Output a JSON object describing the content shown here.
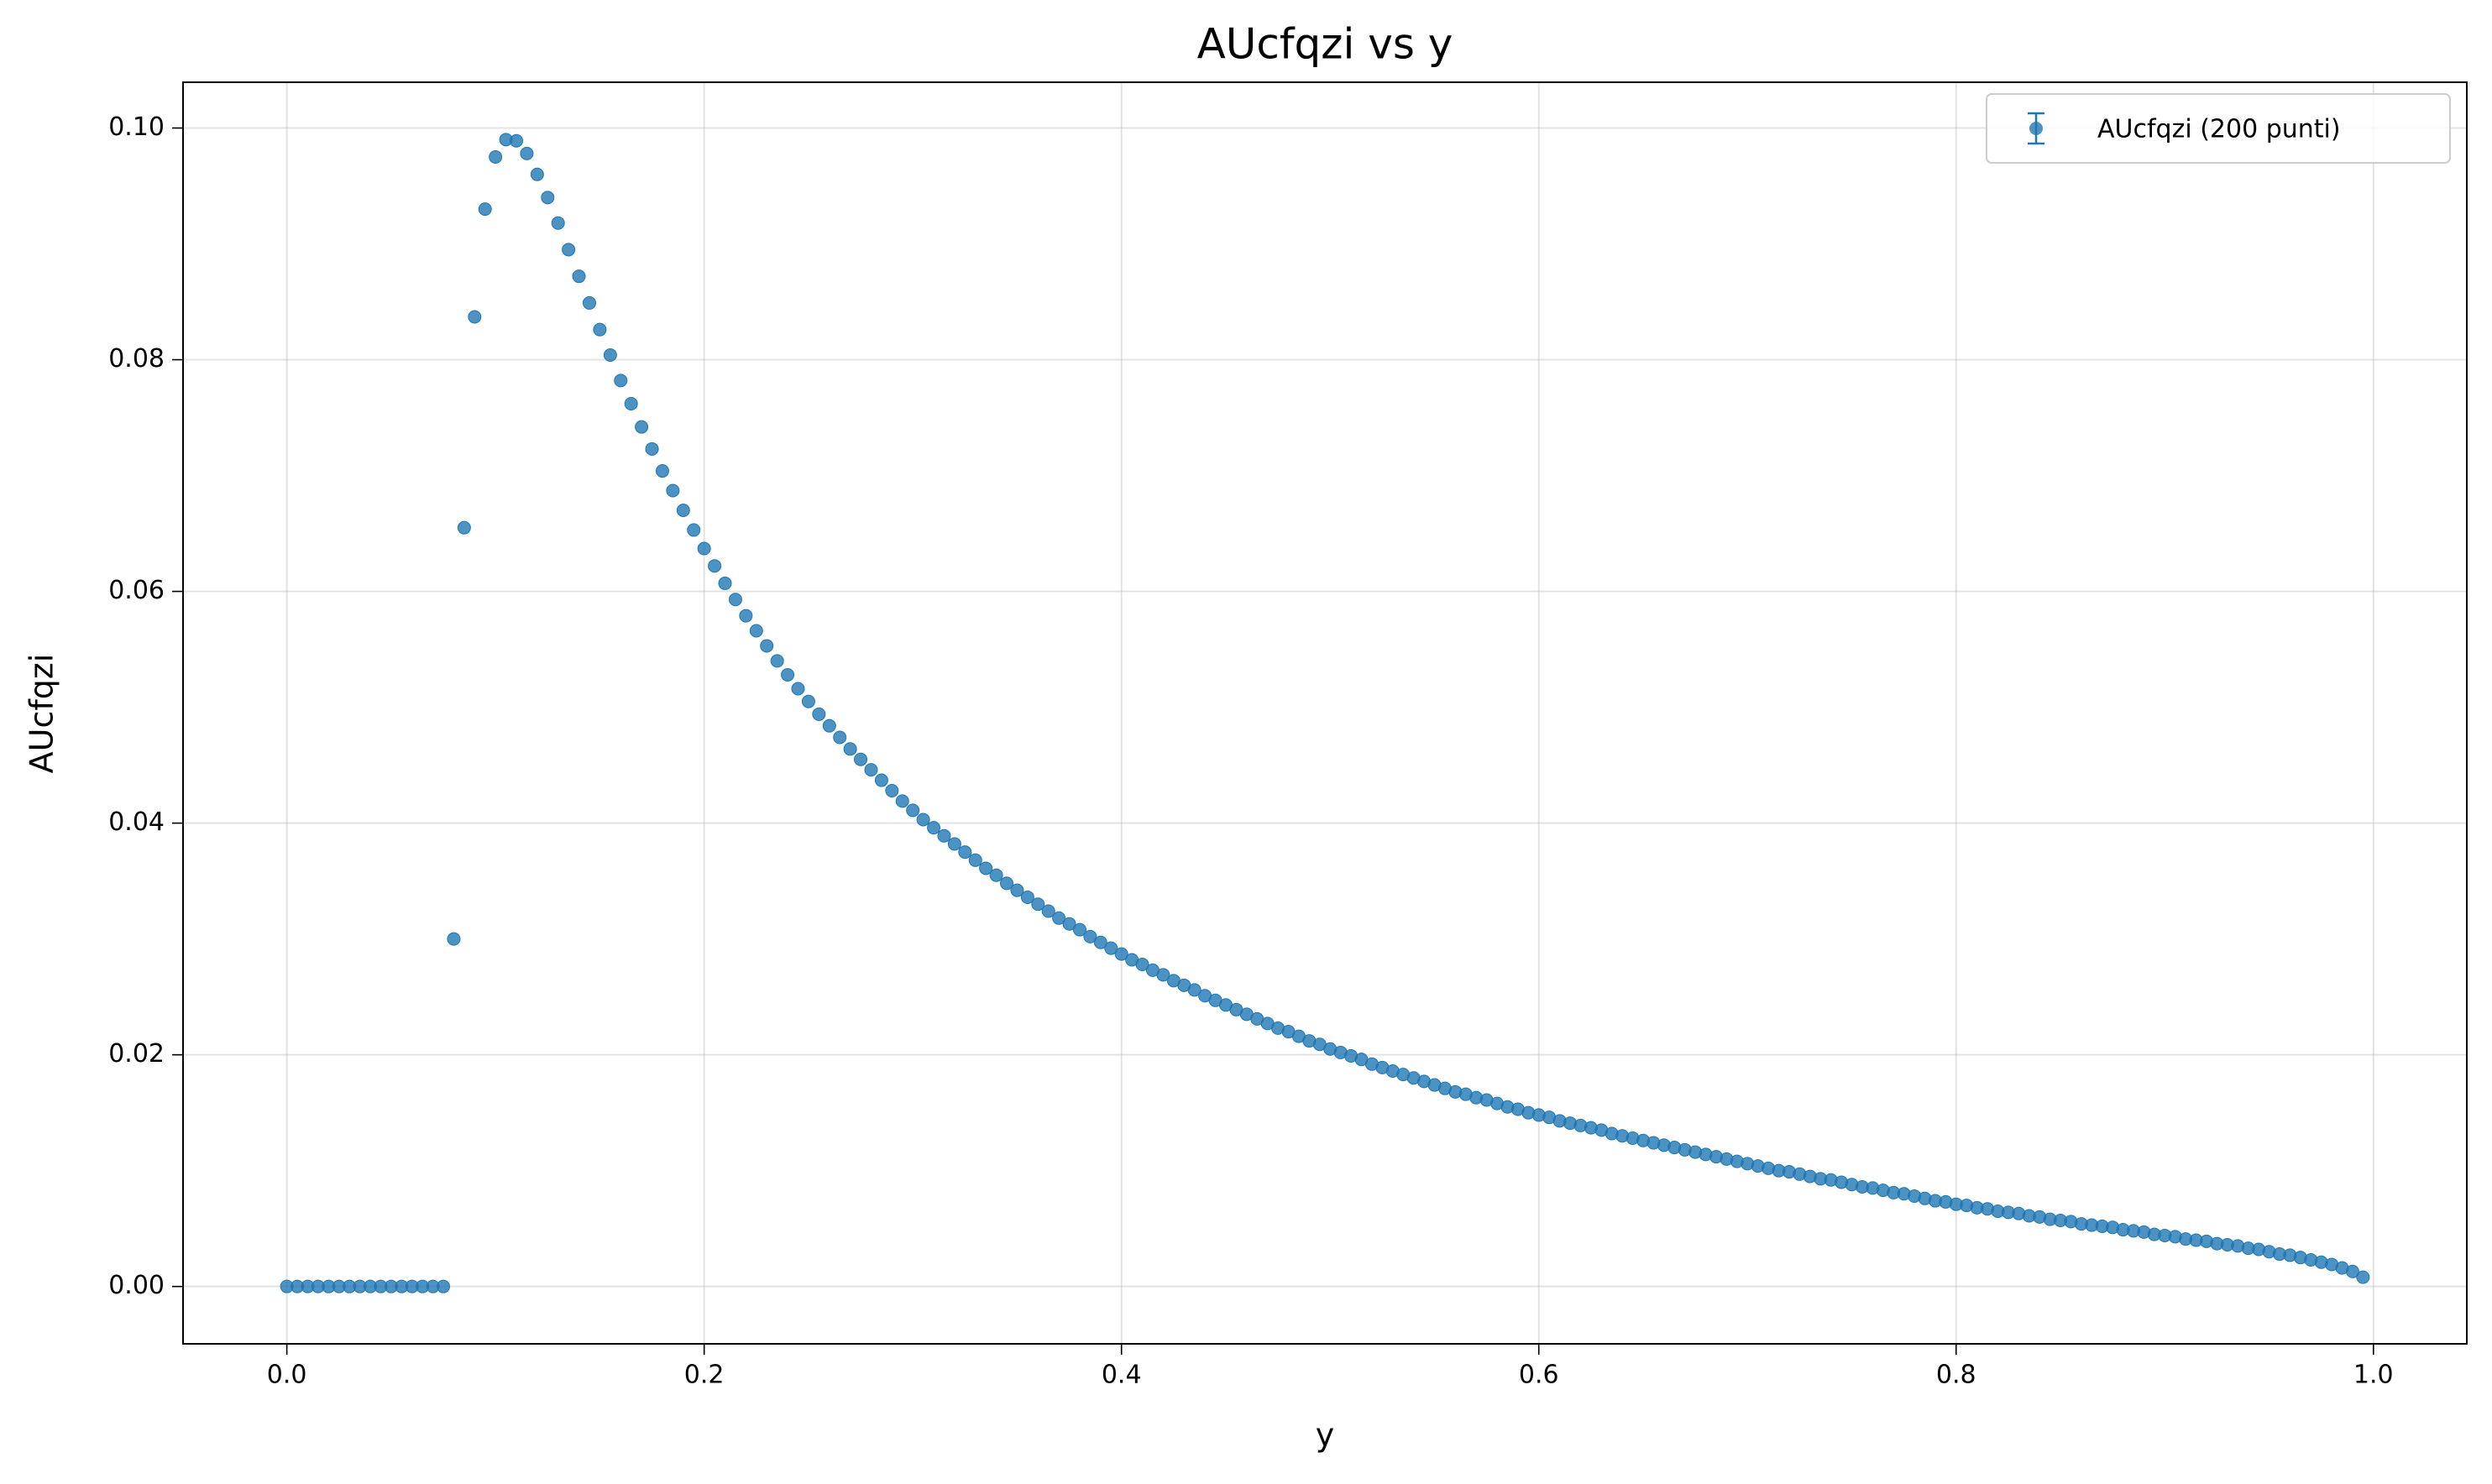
{
  "chart_data": {
    "type": "scatter",
    "title": "AUcfqzi vs y",
    "x_label": "y",
    "y_label": "AUcfqzi",
    "legend": "upper right",
    "grid": true,
    "xlim": [
      -0.04975,
      1.04475
    ],
    "ylim": [
      -0.00495,
      0.10395
    ],
    "xticks": [
      {
        "value": 0,
        "label": "0.0"
      },
      {
        "value": 0.2,
        "label": "0.2"
      },
      {
        "value": 0.4,
        "label": "0.4"
      },
      {
        "value": 0.6,
        "label": "0.6"
      },
      {
        "value": 0.8,
        "label": "0.8"
      },
      {
        "value": 1.0,
        "label": "1.0"
      }
    ],
    "yticks": [
      {
        "value": 0,
        "label": "0.00"
      },
      {
        "value": 0.02,
        "label": "0.02"
      },
      {
        "value": 0.04,
        "label": "0.04"
      },
      {
        "value": 0.06,
        "label": "0.06"
      },
      {
        "value": 0.08,
        "label": "0.08"
      },
      {
        "value": 0.1,
        "label": "0.10"
      }
    ],
    "series": [
      {
        "name": "AUcfqzi (200 punti)",
        "color": "#1f77b4",
        "x": [
          0,
          0.005,
          0.01,
          0.015,
          0.02,
          0.025,
          0.03,
          0.035,
          0.04,
          0.045,
          0.05,
          0.055,
          0.06,
          0.065,
          0.07,
          0.075,
          0.08,
          0.085,
          0.09,
          0.095,
          0.1,
          0.105,
          0.11,
          0.115,
          0.12,
          0.125,
          0.13,
          0.135,
          0.14,
          0.145,
          0.15,
          0.155,
          0.16,
          0.165,
          0.17,
          0.175,
          0.18,
          0.185,
          0.19,
          0.195,
          0.2,
          0.205,
          0.21,
          0.215,
          0.22,
          0.225,
          0.23,
          0.235,
          0.24,
          0.245,
          0.25,
          0.255,
          0.26,
          0.265,
          0.27,
          0.275,
          0.28,
          0.285,
          0.29,
          0.295,
          0.3,
          0.305,
          0.31,
          0.315,
          0.32,
          0.325,
          0.33,
          0.335,
          0.34,
          0.345,
          0.35,
          0.355,
          0.36,
          0.365,
          0.37,
          0.375,
          0.38,
          0.385,
          0.39,
          0.395,
          0.4,
          0.405,
          0.41,
          0.415,
          0.42,
          0.425,
          0.43,
          0.435,
          0.44,
          0.445,
          0.45,
          0.455,
          0.46,
          0.465,
          0.47,
          0.475,
          0.48,
          0.485,
          0.49,
          0.495,
          0.5,
          0.505,
          0.51,
          0.515,
          0.52,
          0.525,
          0.53,
          0.535,
          0.54,
          0.545,
          0.55,
          0.555,
          0.56,
          0.565,
          0.57,
          0.575,
          0.58,
          0.585,
          0.59,
          0.595,
          0.6,
          0.605,
          0.61,
          0.615,
          0.62,
          0.625,
          0.63,
          0.635,
          0.64,
          0.645,
          0.65,
          0.655,
          0.66,
          0.665,
          0.67,
          0.675,
          0.68,
          0.685,
          0.69,
          0.695,
          0.7,
          0.705,
          0.71,
          0.715,
          0.72,
          0.725,
          0.73,
          0.735,
          0.74,
          0.745,
          0.75,
          0.755,
          0.76,
          0.765,
          0.77,
          0.775,
          0.78,
          0.785,
          0.79,
          0.795,
          0.8,
          0.805,
          0.81,
          0.815,
          0.82,
          0.825,
          0.83,
          0.835,
          0.84,
          0.845,
          0.85,
          0.855,
          0.86,
          0.865,
          0.87,
          0.875,
          0.88,
          0.885,
          0.89,
          0.895,
          0.9,
          0.905,
          0.91,
          0.915,
          0.92,
          0.925,
          0.93,
          0.935,
          0.94,
          0.945,
          0.95,
          0.955,
          0.96,
          0.965,
          0.97,
          0.975,
          0.98,
          0.985,
          0.99,
          0.995
        ],
        "values": [
          0,
          0,
          0,
          0,
          0,
          0,
          0,
          0,
          0,
          0,
          0,
          0,
          0,
          0,
          0,
          0,
          0.03,
          0.0655,
          0.0837,
          0.093,
          0.0975,
          0.099,
          0.0989,
          0.0978,
          0.096,
          0.094,
          0.0918,
          0.0895,
          0.0872,
          0.0849,
          0.0826,
          0.0804,
          0.0782,
          0.0762,
          0.0742,
          0.0723,
          0.0704,
          0.0687,
          0.067,
          0.0653,
          0.0637,
          0.0622,
          0.0607,
          0.0593,
          0.0579,
          0.0566,
          0.0553,
          0.054,
          0.0528,
          0.0516,
          0.0505,
          0.0494,
          0.0484,
          0.0474,
          0.0464,
          0.0455,
          0.0446,
          0.0437,
          0.0428,
          0.0419,
          0.0411,
          0.0403,
          0.0396,
          0.0389,
          0.0382,
          0.0375,
          0.0368,
          0.0361,
          0.0355,
          0.0348,
          0.0342,
          0.0336,
          0.033,
          0.0324,
          0.0318,
          0.0313,
          0.0308,
          0.0302,
          0.0297,
          0.0292,
          0.0287,
          0.0282,
          0.0278,
          0.0273,
          0.0269,
          0.0264,
          0.026,
          0.0256,
          0.0251,
          0.0247,
          0.0243,
          0.0239,
          0.0235,
          0.0231,
          0.0227,
          0.0223,
          0.022,
          0.0216,
          0.0212,
          0.0209,
          0.0205,
          0.0202,
          0.0199,
          0.0196,
          0.0192,
          0.0189,
          0.0186,
          0.0183,
          0.018,
          0.0177,
          0.0174,
          0.0171,
          0.0168,
          0.0166,
          0.0163,
          0.0161,
          0.0158,
          0.0155,
          0.0153,
          0.015,
          0.0148,
          0.0146,
          0.0143,
          0.0141,
          0.0139,
          0.0137,
          0.0135,
          0.0132,
          0.013,
          0.0128,
          0.0126,
          0.0124,
          0.0122,
          0.012,
          0.0118,
          0.0116,
          0.0114,
          0.0112,
          0.011,
          0.0108,
          0.0106,
          0.0104,
          0.0102,
          0.01,
          0.0099,
          0.0097,
          0.0095,
          0.0093,
          0.0092,
          0.009,
          0.0088,
          0.0086,
          0.0085,
          0.0083,
          0.0081,
          0.008,
          0.0078,
          0.0076,
          0.0074,
          0.0073,
          0.0071,
          0.007,
          0.0068,
          0.0067,
          0.0065,
          0.0064,
          0.0063,
          0.0061,
          0.006,
          0.0058,
          0.0057,
          0.0056,
          0.0054,
          0.0053,
          0.0052,
          0.0051,
          0.0049,
          0.0048,
          0.0047,
          0.0045,
          0.0044,
          0.0043,
          0.0041,
          0.004,
          0.0039,
          0.0037,
          0.0036,
          0.0035,
          0.0033,
          0.0032,
          0.003,
          0.0028,
          0.0027,
          0.0025,
          0.0023,
          0.0021,
          0.0019,
          0.0016,
          0.0013,
          0.0008
        ]
      }
    ]
  }
}
